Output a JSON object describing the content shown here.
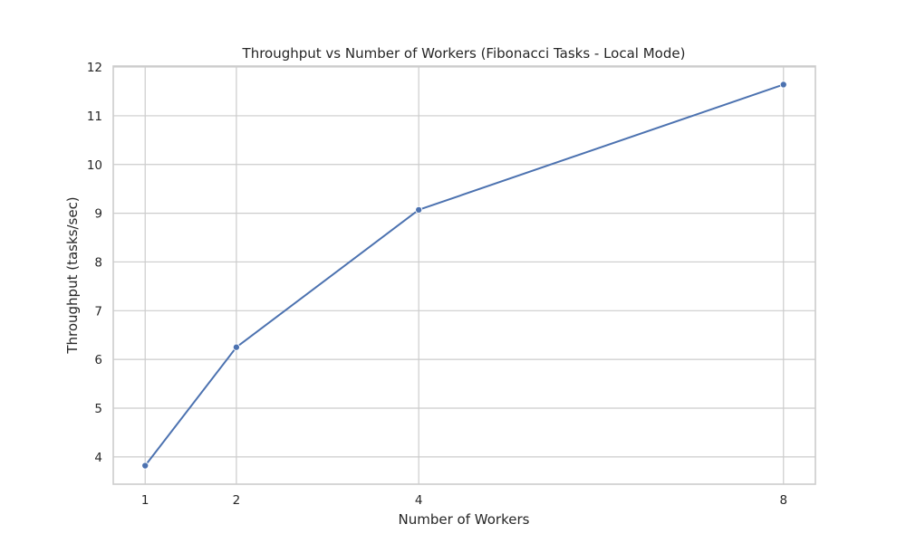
{
  "chart_data": {
    "type": "line",
    "title": "Throughput vs Number of Workers (Fibonacci Tasks - Local Mode)",
    "xlabel": "Number of Workers",
    "ylabel": "Throughput (tasks/sec)",
    "x": [
      1,
      2,
      4,
      8
    ],
    "series": [
      {
        "values": [
          3.82,
          6.25,
          9.07,
          11.64
        ],
        "color": "#4c72b0"
      }
    ],
    "xticks": [
      1,
      2,
      4,
      8
    ],
    "xtick_labels": [
      "1",
      "2",
      "4",
      "8"
    ],
    "yticks": [
      4,
      5,
      6,
      7,
      8,
      9,
      10,
      11,
      12
    ],
    "ytick_labels": [
      "4",
      "5",
      "6",
      "7",
      "8",
      "9",
      "10",
      "11",
      "12"
    ],
    "xlim": [
      0.65,
      8.35
    ],
    "ylim": [
      3.44,
      12.02
    ],
    "grid": true,
    "markers": true,
    "background": "#ffffff",
    "grid_color": "#cccccc",
    "spine_color": "#cccccc",
    "text_color": "#262626"
  }
}
